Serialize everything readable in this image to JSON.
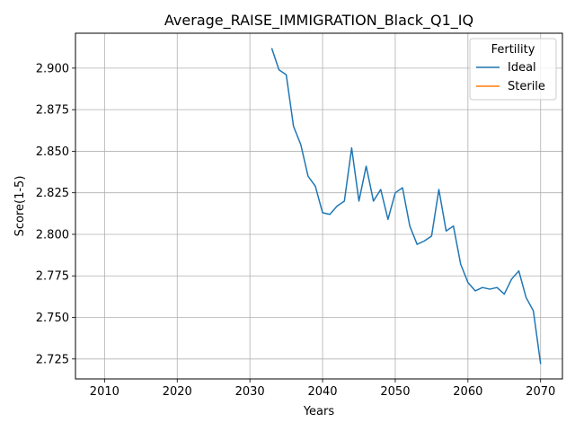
{
  "chart_data": {
    "type": "line",
    "title": "Average_RAISE_IMMIGRATION_Black_Q1_IQ",
    "xlabel": "Years",
    "ylabel": "Score(1-5)",
    "xlim": [
      2006,
      2073
    ],
    "ylim": [
      2.713,
      2.921
    ],
    "xticks": [
      2010,
      2020,
      2030,
      2040,
      2050,
      2060,
      2070
    ],
    "yticks": [
      2.725,
      2.75,
      2.775,
      2.8,
      2.825,
      2.85,
      2.875,
      2.9
    ],
    "ytick_labels": [
      "2.725",
      "2.750",
      "2.775",
      "2.800",
      "2.825",
      "2.850",
      "2.875",
      "2.900"
    ],
    "grid": true,
    "legend": {
      "title": "Fertility",
      "placement": "top-right"
    },
    "series": [
      {
        "name": "Ideal",
        "color": "#1f77b4",
        "x": [
          2033,
          2034,
          2035,
          2036,
          2037,
          2038,
          2039,
          2040,
          2041,
          2042,
          2043,
          2044,
          2045,
          2046,
          2047,
          2048,
          2049,
          2050,
          2051,
          2052,
          2053,
          2054,
          2055,
          2056,
          2057,
          2058,
          2059,
          2060,
          2061,
          2062,
          2063,
          2064,
          2065,
          2066,
          2067,
          2068,
          2069,
          2070
        ],
        "y": [
          2.912,
          2.899,
          2.896,
          2.865,
          2.854,
          2.835,
          2.829,
          2.813,
          2.812,
          2.817,
          2.82,
          2.852,
          2.82,
          2.841,
          2.82,
          2.827,
          2.809,
          2.825,
          2.828,
          2.805,
          2.794,
          2.796,
          2.799,
          2.827,
          2.802,
          2.805,
          2.782,
          2.771,
          2.766,
          2.768,
          2.767,
          2.768,
          2.764,
          2.773,
          2.778,
          2.762,
          2.754,
          2.722
        ]
      },
      {
        "name": "Sterile",
        "color": "#ff7f0e",
        "x": [],
        "y": []
      }
    ]
  }
}
